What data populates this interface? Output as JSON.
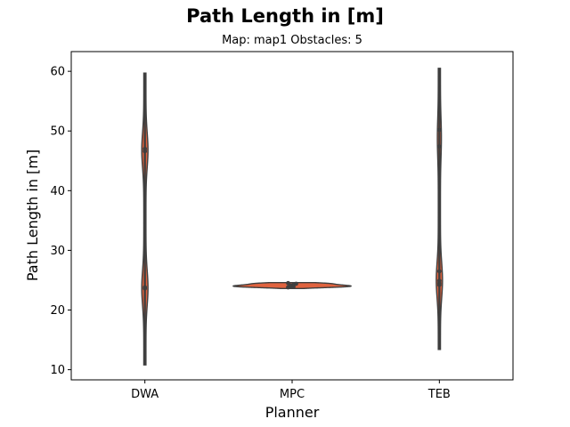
{
  "chart_data": {
    "type": "violin",
    "title": "Path Length in [m]",
    "subtitle": "Map: map1 Obstacles: 5",
    "xlabel": "Planner",
    "ylabel": "Path Length in [m]",
    "categories": [
      "DWA",
      "MPC",
      "TEB"
    ],
    "ylim": [
      8.3,
      63.3
    ],
    "yticks": [
      10,
      20,
      30,
      40,
      50,
      60
    ],
    "grid": false,
    "colors": {
      "violin_fill": "#e0633f",
      "violin_edge": "#3f3f3f",
      "points": "#3f3f3f"
    },
    "violins": [
      {
        "category": "DWA",
        "range": [
          10.8,
          59.7
        ],
        "points": [
          23.6,
          23.8,
          46.6,
          47.0
        ]
      },
      {
        "category": "MPC",
        "range": [
          23.6,
          24.6
        ],
        "points": [
          23.8,
          24.0,
          24.2,
          24.4,
          24.5,
          24.1,
          23.9
        ]
      },
      {
        "category": "TEB",
        "range": [
          13.4,
          60.5
        ],
        "points": [
          24.2,
          24.5,
          24.9,
          26.5,
          47.4,
          50.2
        ]
      }
    ]
  }
}
